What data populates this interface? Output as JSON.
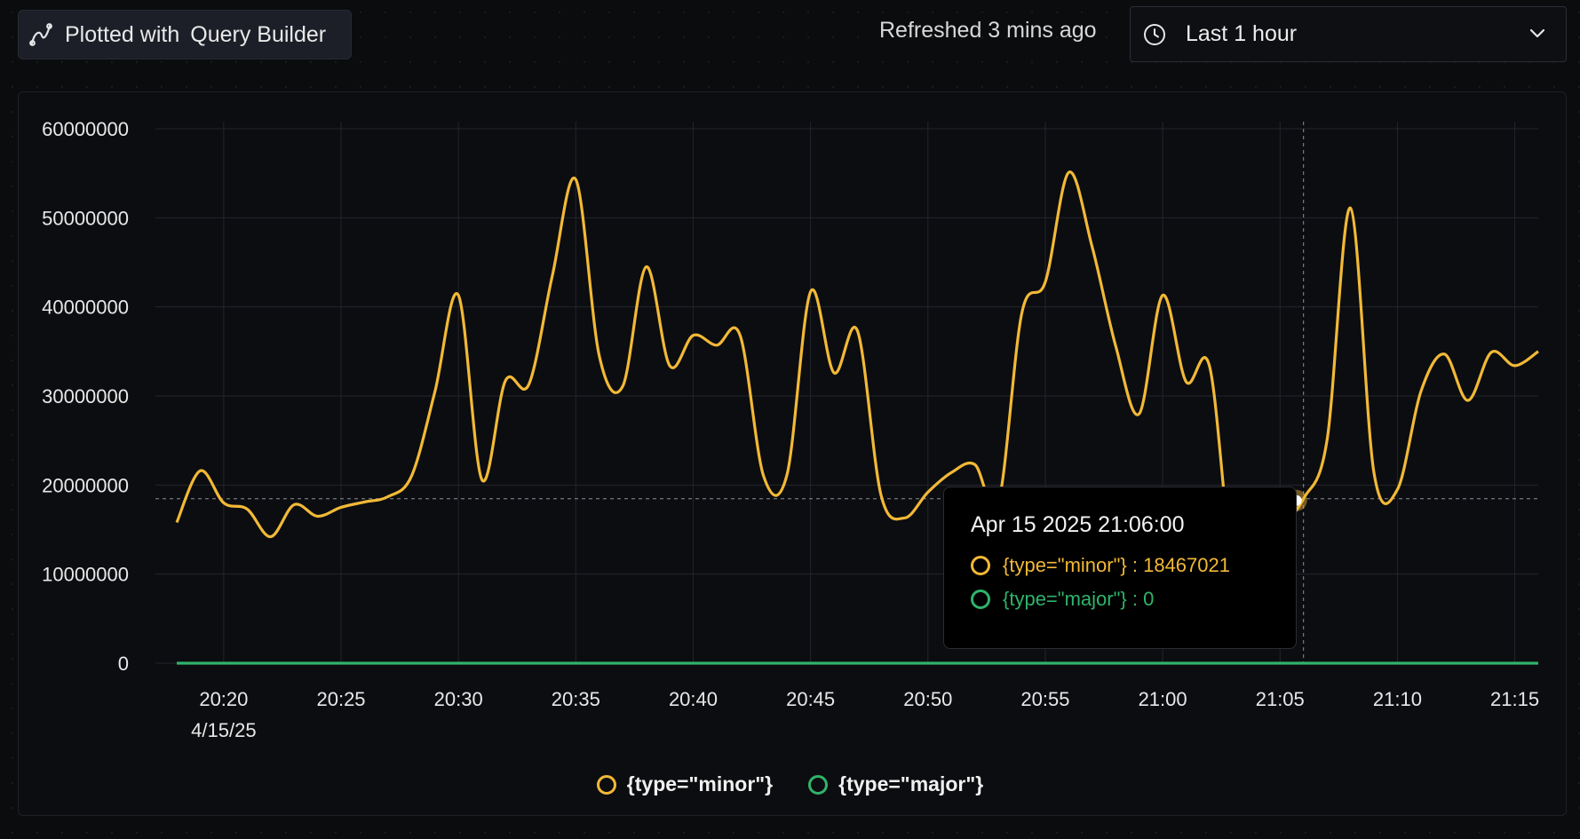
{
  "header": {
    "plotted_label": "Plotted with",
    "query_builder_label": "Query Builder",
    "refreshed_text": "Refreshed 3 mins ago",
    "time_range": "Last 1 hour"
  },
  "colors": {
    "minor": "#f2b937",
    "major": "#2fb36b",
    "grid": "#22252c"
  },
  "icons": {
    "plotted": "line-chart-icon",
    "time": "clock-icon",
    "dropdown": "chevron-down-icon"
  },
  "tooltip": {
    "title": "Apr 15 2025 21:06:00",
    "rows": [
      {
        "series": "{type=\"minor\"}",
        "text": "{type=\"minor\"} : 18467021"
      },
      {
        "series": "{type=\"major\"}",
        "text": "{type=\"major\"} : 0"
      }
    ]
  },
  "chart_data": {
    "type": "line",
    "xlabel": "",
    "ylabel": "",
    "x_ticks": [
      "20:20",
      "20:25",
      "20:30",
      "20:35",
      "20:40",
      "20:45",
      "20:50",
      "20:55",
      "21:00",
      "21:05",
      "21:10",
      "21:15"
    ],
    "x_date_label": "4/15/25",
    "x_range_minutes": [
      "20:18",
      "21:16"
    ],
    "y_ticks": [
      0,
      10000000,
      20000000,
      30000000,
      40000000,
      50000000,
      60000000
    ],
    "ylim": [
      0,
      60000000
    ],
    "grid": true,
    "legend_position": "bottom-center",
    "crosshair": {
      "x": "21:06",
      "y": 18467021
    },
    "series": [
      {
        "name": "{type=\"minor\"}",
        "x": [
          "20:18",
          "20:19",
          "20:20",
          "20:21",
          "20:22",
          "20:23",
          "20:24",
          "20:25",
          "20:26",
          "20:27",
          "20:28",
          "20:29",
          "20:30",
          "20:31",
          "20:32",
          "20:33",
          "20:34",
          "20:35",
          "20:36",
          "20:37",
          "20:38",
          "20:39",
          "20:40",
          "20:41",
          "20:42",
          "20:43",
          "20:44",
          "20:45",
          "20:46",
          "20:47",
          "20:48",
          "20:49",
          "20:50",
          "20:51",
          "20:52",
          "20:53",
          "20:54",
          "20:55",
          "20:56",
          "20:57",
          "20:58",
          "20:59",
          "21:00",
          "21:01",
          "21:02",
          "21:03",
          "21:04",
          "21:05",
          "21:06",
          "21:07",
          "21:08",
          "21:09",
          "21:10",
          "21:11",
          "21:12",
          "21:13",
          "21:14",
          "21:15",
          "21:16"
        ],
        "values": [
          15800000,
          21600000,
          18000000,
          17300000,
          14200000,
          17800000,
          16500000,
          17500000,
          18100000,
          18700000,
          21000000,
          30500000,
          41300000,
          20600000,
          31700000,
          31300000,
          43500000,
          54300000,
          34500000,
          31100000,
          44500000,
          33400000,
          36800000,
          35700000,
          36800000,
          21000000,
          21200000,
          41700000,
          32600000,
          37300000,
          18900000,
          16300000,
          19200000,
          21400000,
          22300000,
          18000000,
          39300000,
          42800000,
          55100000,
          46700000,
          35600000,
          28000000,
          41300000,
          31600000,
          33300000,
          11000000,
          12000000,
          15000000,
          18467021,
          25000000,
          51100000,
          21400000,
          19500000,
          30500000,
          34700000,
          29500000,
          34900000,
          33400000,
          35000000
        ]
      },
      {
        "name": "{type=\"major\"}",
        "x": [
          "20:18",
          "21:16"
        ],
        "values": [
          0,
          0
        ]
      }
    ]
  }
}
